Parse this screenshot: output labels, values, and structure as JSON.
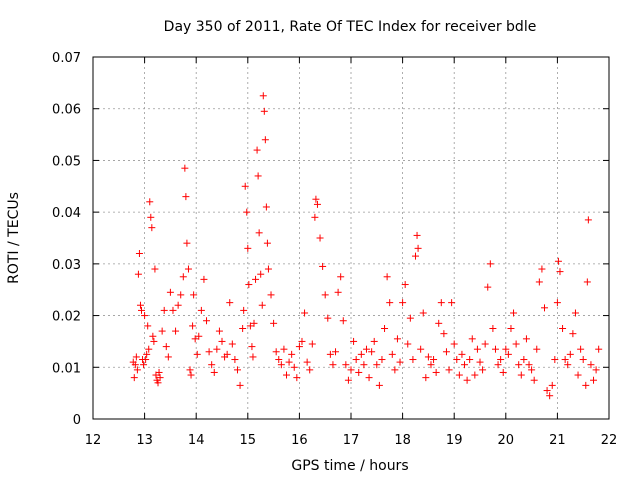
{
  "chart_data": {
    "type": "scatter",
    "title": "Day 350 of 2011, Rate Of TEC Index for receiver bdle",
    "xlabel": "GPS time / hours",
    "ylabel": "ROTI / TECUs",
    "xlim": [
      12,
      22
    ],
    "ylim": [
      0,
      0.07
    ],
    "xticks": [
      12,
      13,
      14,
      15,
      16,
      17,
      18,
      19,
      20,
      21,
      22
    ],
    "yticks": [
      0,
      0.01,
      0.02,
      0.03,
      0.04,
      0.05,
      0.06,
      0.07
    ],
    "xtick_labels": [
      "12",
      "13",
      "14",
      "15",
      "16",
      "17",
      "18",
      "19",
      "20",
      "21",
      "22"
    ],
    "ytick_labels": [
      "0",
      "0.01",
      "0.02",
      "0.03",
      "0.04",
      "0.05",
      "0.06",
      "0.07"
    ],
    "grid": true,
    "marker": "+",
    "color": "#ff0000",
    "series": [
      {
        "name": "ROTI",
        "points": [
          [
            12.78,
            0.011
          ],
          [
            12.8,
            0.008
          ],
          [
            12.82,
            0.0105
          ],
          [
            12.84,
            0.012
          ],
          [
            12.86,
            0.0095
          ],
          [
            12.88,
            0.028
          ],
          [
            12.9,
            0.032
          ],
          [
            12.92,
            0.022
          ],
          [
            12.94,
            0.021
          ],
          [
            12.96,
            0.0115
          ],
          [
            12.98,
            0.0105
          ],
          [
            13.0,
            0.02
          ],
          [
            13.02,
            0.0115
          ],
          [
            13.04,
            0.0125
          ],
          [
            13.06,
            0.018
          ],
          [
            13.08,
            0.0135
          ],
          [
            13.1,
            0.042
          ],
          [
            13.12,
            0.039
          ],
          [
            13.14,
            0.037
          ],
          [
            13.16,
            0.016
          ],
          [
            13.18,
            0.015
          ],
          [
            13.2,
            0.029
          ],
          [
            13.22,
            0.0085
          ],
          [
            13.24,
            0.0075
          ],
          [
            13.26,
            0.007
          ],
          [
            13.28,
            0.009
          ],
          [
            13.3,
            0.008
          ],
          [
            13.34,
            0.017
          ],
          [
            13.38,
            0.021
          ],
          [
            13.42,
            0.014
          ],
          [
            13.46,
            0.012
          ],
          [
            13.5,
            0.0245
          ],
          [
            13.55,
            0.021
          ],
          [
            13.6,
            0.017
          ],
          [
            13.65,
            0.022
          ],
          [
            13.7,
            0.024
          ],
          [
            13.75,
            0.0275
          ],
          [
            13.78,
            0.0485
          ],
          [
            13.8,
            0.043
          ],
          [
            13.82,
            0.034
          ],
          [
            13.85,
            0.029
          ],
          [
            13.88,
            0.0095
          ],
          [
            13.9,
            0.0085
          ],
          [
            13.93,
            0.018
          ],
          [
            13.95,
            0.024
          ],
          [
            13.98,
            0.0155
          ],
          [
            14.02,
            0.0125
          ],
          [
            14.05,
            0.016
          ],
          [
            14.1,
            0.021
          ],
          [
            14.15,
            0.027
          ],
          [
            14.2,
            0.019
          ],
          [
            14.25,
            0.013
          ],
          [
            14.3,
            0.0105
          ],
          [
            14.35,
            0.009
          ],
          [
            14.4,
            0.0135
          ],
          [
            14.45,
            0.017
          ],
          [
            14.5,
            0.015
          ],
          [
            14.55,
            0.012
          ],
          [
            14.6,
            0.0125
          ],
          [
            14.65,
            0.0225
          ],
          [
            14.7,
            0.0145
          ],
          [
            14.75,
            0.0115
          ],
          [
            14.8,
            0.0095
          ],
          [
            14.85,
            0.0065
          ],
          [
            14.9,
            0.0175
          ],
          [
            14.92,
            0.021
          ],
          [
            14.95,
            0.045
          ],
          [
            14.98,
            0.04
          ],
          [
            15.0,
            0.033
          ],
          [
            15.02,
            0.026
          ],
          [
            15.05,
            0.018
          ],
          [
            15.08,
            0.014
          ],
          [
            15.1,
            0.012
          ],
          [
            15.12,
            0.0185
          ],
          [
            15.15,
            0.027
          ],
          [
            15.18,
            0.052
          ],
          [
            15.2,
            0.047
          ],
          [
            15.22,
            0.036
          ],
          [
            15.25,
            0.028
          ],
          [
            15.28,
            0.022
          ],
          [
            15.3,
            0.0625
          ],
          [
            15.32,
            0.0595
          ],
          [
            15.34,
            0.054
          ],
          [
            15.36,
            0.041
          ],
          [
            15.38,
            0.034
          ],
          [
            15.4,
            0.029
          ],
          [
            15.45,
            0.024
          ],
          [
            15.5,
            0.0185
          ],
          [
            15.55,
            0.013
          ],
          [
            15.6,
            0.0115
          ],
          [
            15.65,
            0.0105
          ],
          [
            15.7,
            0.0135
          ],
          [
            15.75,
            0.0085
          ],
          [
            15.8,
            0.011
          ],
          [
            15.85,
            0.0125
          ],
          [
            15.9,
            0.01
          ],
          [
            15.95,
            0.008
          ],
          [
            16.0,
            0.014
          ],
          [
            16.05,
            0.015
          ],
          [
            16.1,
            0.0205
          ],
          [
            16.15,
            0.011
          ],
          [
            16.2,
            0.0095
          ],
          [
            16.25,
            0.0145
          ],
          [
            16.3,
            0.039
          ],
          [
            16.32,
            0.0425
          ],
          [
            16.35,
            0.0415
          ],
          [
            16.4,
            0.035
          ],
          [
            16.45,
            0.0295
          ],
          [
            16.5,
            0.024
          ],
          [
            16.55,
            0.0195
          ],
          [
            16.6,
            0.0125
          ],
          [
            16.65,
            0.0105
          ],
          [
            16.7,
            0.013
          ],
          [
            16.75,
            0.0245
          ],
          [
            16.8,
            0.0275
          ],
          [
            16.85,
            0.019
          ],
          [
            16.9,
            0.0105
          ],
          [
            16.95,
            0.0075
          ],
          [
            17.0,
            0.0095
          ],
          [
            17.05,
            0.015
          ],
          [
            17.1,
            0.0115
          ],
          [
            17.15,
            0.009
          ],
          [
            17.2,
            0.0125
          ],
          [
            17.25,
            0.0105
          ],
          [
            17.3,
            0.0135
          ],
          [
            17.35,
            0.008
          ],
          [
            17.4,
            0.013
          ],
          [
            17.45,
            0.015
          ],
          [
            17.5,
            0.0105
          ],
          [
            17.55,
            0.0065
          ],
          [
            17.6,
            0.0115
          ],
          [
            17.65,
            0.0175
          ],
          [
            17.7,
            0.0275
          ],
          [
            17.75,
            0.0225
          ],
          [
            17.8,
            0.0125
          ],
          [
            17.85,
            0.0095
          ],
          [
            17.9,
            0.0155
          ],
          [
            17.95,
            0.011
          ],
          [
            18.0,
            0.0225
          ],
          [
            18.05,
            0.026
          ],
          [
            18.1,
            0.0145
          ],
          [
            18.15,
            0.0195
          ],
          [
            18.2,
            0.0115
          ],
          [
            18.25,
            0.0315
          ],
          [
            18.28,
            0.0355
          ],
          [
            18.3,
            0.033
          ],
          [
            18.35,
            0.0135
          ],
          [
            18.4,
            0.0205
          ],
          [
            18.45,
            0.008
          ],
          [
            18.5,
            0.012
          ],
          [
            18.55,
            0.0105
          ],
          [
            18.6,
            0.0115
          ],
          [
            18.65,
            0.009
          ],
          [
            18.7,
            0.0185
          ],
          [
            18.75,
            0.0225
          ],
          [
            18.8,
            0.0165
          ],
          [
            18.85,
            0.013
          ],
          [
            18.9,
            0.0095
          ],
          [
            18.95,
            0.0225
          ],
          [
            19.0,
            0.0145
          ],
          [
            19.05,
            0.0115
          ],
          [
            19.1,
            0.0085
          ],
          [
            19.15,
            0.0125
          ],
          [
            19.2,
            0.0105
          ],
          [
            19.25,
            0.0075
          ],
          [
            19.3,
            0.0115
          ],
          [
            19.35,
            0.0155
          ],
          [
            19.4,
            0.0085
          ],
          [
            19.45,
            0.0135
          ],
          [
            19.5,
            0.011
          ],
          [
            19.55,
            0.0095
          ],
          [
            19.6,
            0.0145
          ],
          [
            19.65,
            0.0255
          ],
          [
            19.7,
            0.03
          ],
          [
            19.75,
            0.0175
          ],
          [
            19.8,
            0.0135
          ],
          [
            19.85,
            0.0105
          ],
          [
            19.9,
            0.0115
          ],
          [
            19.95,
            0.009
          ],
          [
            20.0,
            0.0135
          ],
          [
            20.05,
            0.0125
          ],
          [
            20.1,
            0.0175
          ],
          [
            20.15,
            0.0205
          ],
          [
            20.2,
            0.0145
          ],
          [
            20.25,
            0.0105
          ],
          [
            20.3,
            0.0085
          ],
          [
            20.35,
            0.0115
          ],
          [
            20.4,
            0.0155
          ],
          [
            20.45,
            0.0105
          ],
          [
            20.5,
            0.0095
          ],
          [
            20.55,
            0.0075
          ],
          [
            20.6,
            0.0135
          ],
          [
            20.65,
            0.0265
          ],
          [
            20.7,
            0.029
          ],
          [
            20.75,
            0.0215
          ],
          [
            20.8,
            0.0055
          ],
          [
            20.85,
            0.0045
          ],
          [
            20.9,
            0.0065
          ],
          [
            20.95,
            0.0115
          ],
          [
            21.0,
            0.0225
          ],
          [
            21.02,
            0.0305
          ],
          [
            21.05,
            0.0285
          ],
          [
            21.1,
            0.0175
          ],
          [
            21.15,
            0.0115
          ],
          [
            21.2,
            0.0105
          ],
          [
            21.25,
            0.0125
          ],
          [
            21.3,
            0.0165
          ],
          [
            21.35,
            0.0205
          ],
          [
            21.4,
            0.0085
          ],
          [
            21.45,
            0.0135
          ],
          [
            21.5,
            0.0115
          ],
          [
            21.55,
            0.0065
          ],
          [
            21.58,
            0.0265
          ],
          [
            21.6,
            0.0385
          ],
          [
            21.65,
            0.0105
          ],
          [
            21.7,
            0.0075
          ],
          [
            21.75,
            0.0095
          ],
          [
            21.8,
            0.0135
          ]
        ]
      }
    ]
  }
}
